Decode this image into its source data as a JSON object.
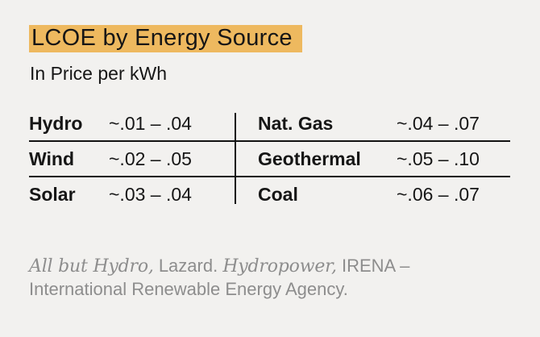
{
  "page": {
    "title": "LCOE by Energy Source",
    "subtitle": "In Price per kWh"
  },
  "table": {
    "rows": [
      {
        "left_label": "Hydro",
        "left_value": "~.01 – .04",
        "right_label": "Nat. Gas",
        "right_value": "~.04 – .07"
      },
      {
        "left_label": "Wind",
        "left_value": "~.02 – .05",
        "right_label": "Geothermal",
        "right_value": "~.05 – .10"
      },
      {
        "left_label": "Solar",
        "left_value": "~.03 – .04",
        "right_label": "Coal",
        "right_value": "~.06 – .07"
      }
    ]
  },
  "footer": {
    "seg1_italic": "All but Hydro,",
    "seg2": " Lazard. ",
    "seg3_italic": "Hydropower,",
    "seg4": " IRENA –",
    "line2": "International Renewable Energy Agency."
  },
  "colors": {
    "highlight": "#eeb95f",
    "background": "#f2f1ef",
    "text": "#161616",
    "rule_line": "#121212",
    "muted_text": "#8d8d8d"
  },
  "chart_data": {
    "type": "table",
    "title": "LCOE by Energy Source",
    "subtitle": "In Price per kWh",
    "columns": [
      "Energy Source",
      "Price per kWh"
    ],
    "rows": [
      {
        "source": "Hydro",
        "low": 0.01,
        "high": 0.04,
        "display": "~.01 – .04"
      },
      {
        "source": "Wind",
        "low": 0.02,
        "high": 0.05,
        "display": "~.02 – .05"
      },
      {
        "source": "Solar",
        "low": 0.03,
        "high": 0.04,
        "display": "~.03 – .04"
      },
      {
        "source": "Nat. Gas",
        "low": 0.04,
        "high": 0.07,
        "display": "~.04 – .07"
      },
      {
        "source": "Geothermal",
        "low": 0.05,
        "high": 0.1,
        "display": "~.05 – .10"
      },
      {
        "source": "Coal",
        "low": 0.06,
        "high": 0.07,
        "display": "~.06 – .07"
      }
    ],
    "layout": "two-column table, 3 rows per column, horizontal rules between rows, vertical rule between columns",
    "source_note": "All but Hydro, Lazard. Hydropower, IRENA – International Renewable Energy Agency."
  }
}
